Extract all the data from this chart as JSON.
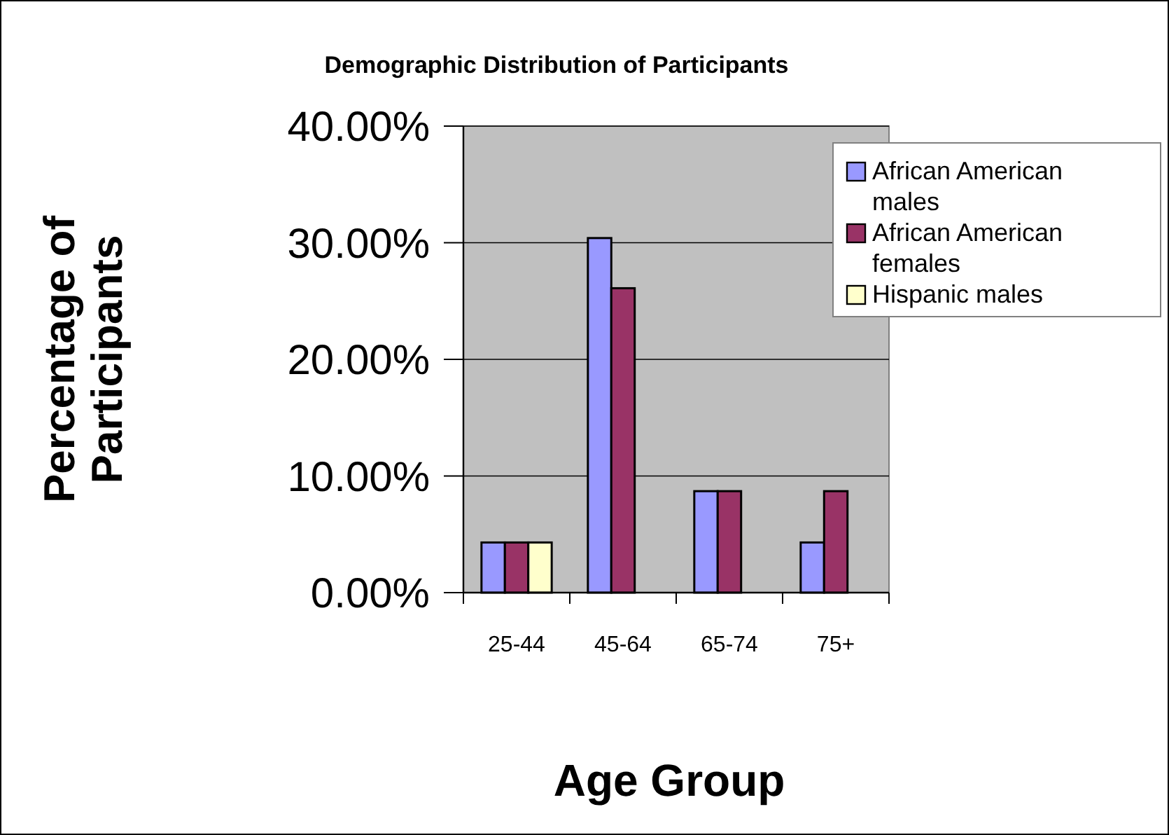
{
  "chart_data": {
    "type": "bar",
    "title": "Demographic Distribution of Participants",
    "xlabel": "Age Group",
    "ylabel": "Percentage of Participants",
    "categories": [
      "25-44",
      "45-64",
      "65-74",
      "75+"
    ],
    "series": [
      {
        "name": "African American males",
        "color": "#9999ff",
        "values": [
          4.3,
          30.4,
          8.7,
          4.3
        ]
      },
      {
        "name": "African American females",
        "color": "#993366",
        "values": [
          4.3,
          26.1,
          8.7,
          8.7
        ]
      },
      {
        "name": "Hispanic males",
        "color": "#ffffcc",
        "values": [
          4.3,
          0,
          0,
          0
        ]
      }
    ],
    "ylim": [
      0,
      40
    ],
    "yticks": [
      {
        "value": 0,
        "label": "0.00%"
      },
      {
        "value": 10,
        "label": "10.00%"
      },
      {
        "value": 20,
        "label": "20.00%"
      },
      {
        "value": 30,
        "label": "30.00%"
      },
      {
        "value": 40,
        "label": "40.00%"
      }
    ],
    "grid": "y",
    "legend": "top right"
  }
}
